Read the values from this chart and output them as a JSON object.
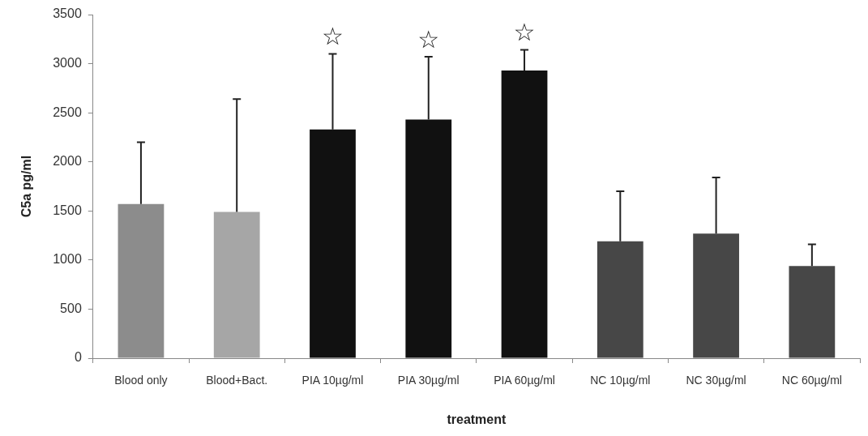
{
  "chart_data": {
    "type": "bar",
    "xlabel": "treatment",
    "ylabel": "C5a pg/ml",
    "categories": [
      "Blood only",
      "Blood+Bact.",
      "PIA 10µg/ml",
      "PIA 30µg/ml",
      "PIA 60µg/ml",
      "NC 10µg/ml",
      "NC 30µg/ml",
      "NC 60µg/ml"
    ],
    "values": [
      1570,
      1490,
      2330,
      2430,
      2930,
      1190,
      1270,
      940
    ],
    "errors": [
      [
        1570,
        2200
      ],
      [
        1490,
        2640
      ],
      [
        2330,
        3100
      ],
      [
        2430,
        3070
      ],
      [
        2930,
        3140
      ],
      [
        1190,
        1700
      ],
      [
        1270,
        1840
      ],
      [
        940,
        1160
      ]
    ],
    "colors": [
      "#8c8c8c",
      "#a6a6a6",
      "#111111",
      "#111111",
      "#111111",
      "#474747",
      "#474747",
      "#474747"
    ],
    "ylim": [
      0,
      3500
    ],
    "yticks": [
      0,
      500,
      1000,
      1500,
      2000,
      2500,
      3000,
      3500
    ],
    "annotations": [
      {
        "text": "☆",
        "x": "PIA 10µg/ml",
        "y": 3100
      },
      {
        "text": "☆",
        "x": "PIA 30µg/ml",
        "y": 3070
      },
      {
        "text": "☆",
        "x": "PIA 60µg/ml",
        "y": 3140
      }
    ],
    "grid": false,
    "legend": false
  }
}
